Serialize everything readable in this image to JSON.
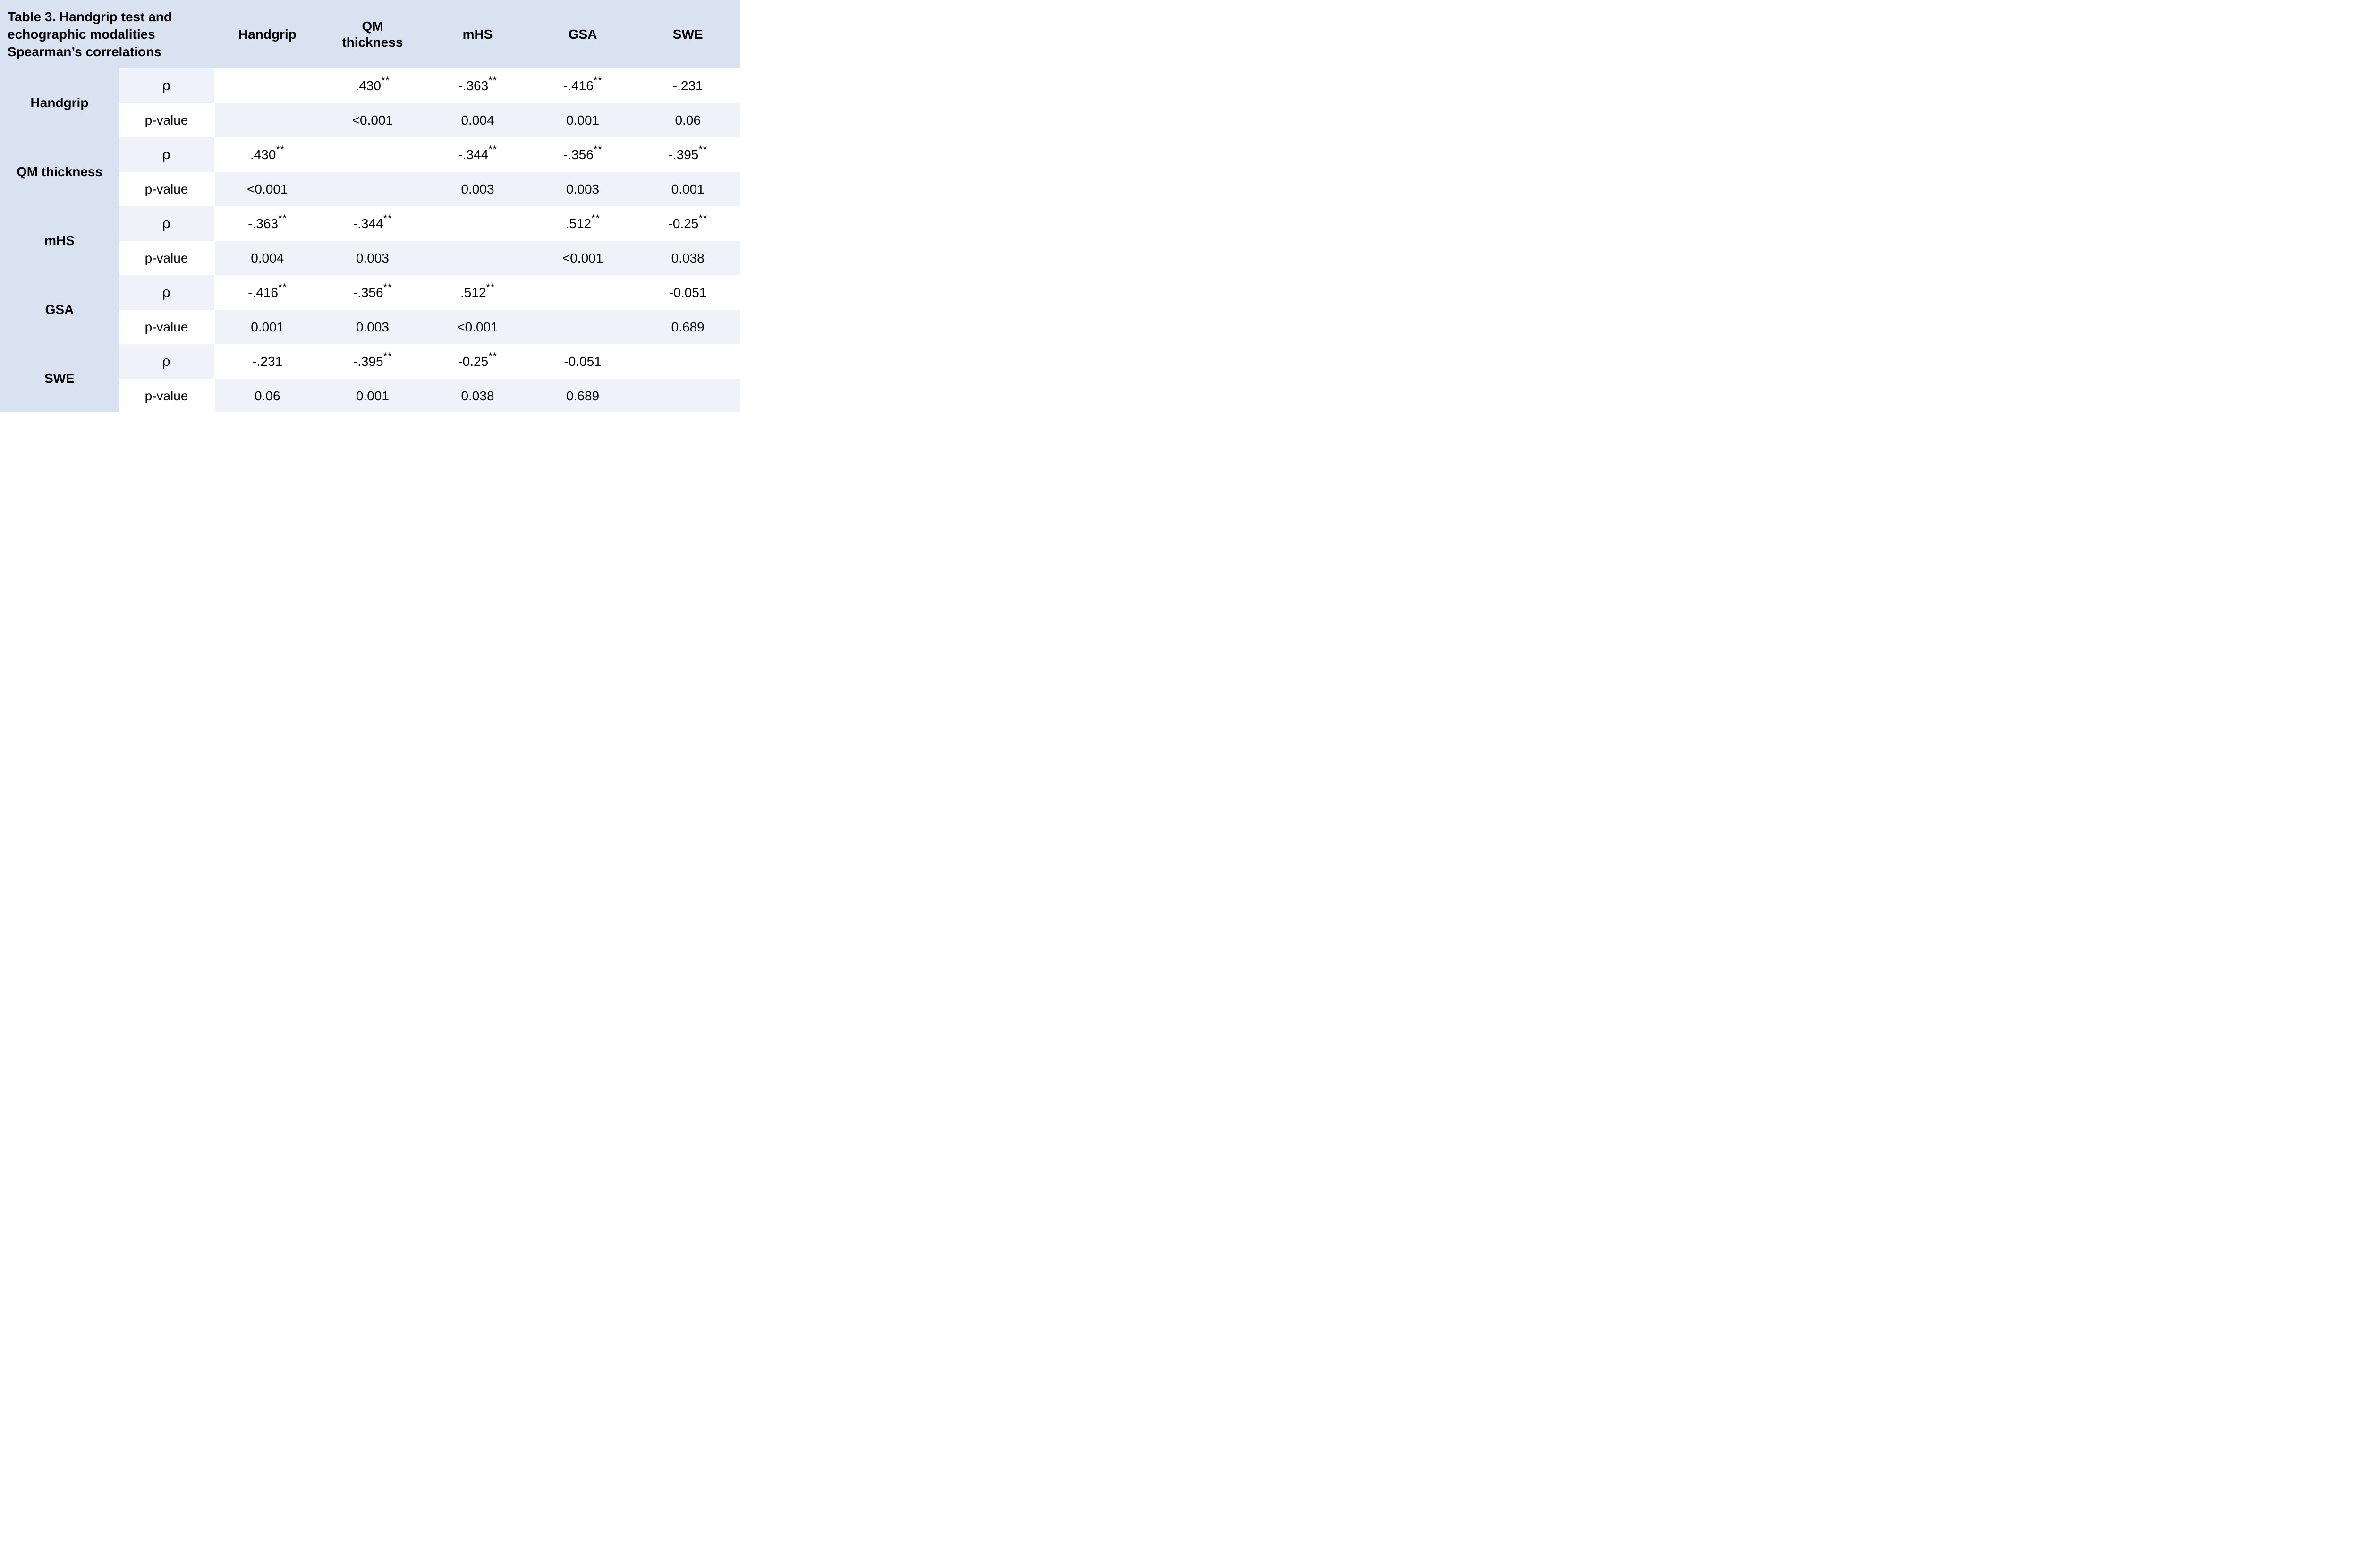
{
  "table": {
    "title": "Table 3. Handgrip test and echographic modalities Spearman’s correlations",
    "columns": [
      "Handgrip",
      "QM thickness",
      "mHS",
      "GSA",
      "SWE"
    ],
    "row_labels": {
      "rho": "ρ",
      "p": "p-value"
    },
    "groups": [
      {
        "label": "Handgrip",
        "rho": [
          "",
          ".430**",
          "-.363**",
          "-.416**",
          "-.231"
        ],
        "p": [
          "",
          "<0.001",
          "0.004",
          "0.001",
          "0.06"
        ]
      },
      {
        "label": "QM thickness",
        "rho": [
          ".430**",
          "",
          "-.344**",
          "-.356**",
          "-.395**"
        ],
        "p": [
          "<0.001",
          "",
          "0.003",
          "0.003",
          "0.001"
        ]
      },
      {
        "label": "mHS",
        "rho": [
          "-.363**",
          "-.344**",
          "",
          ".512**",
          "-0.25**"
        ],
        "p": [
          "0.004",
          "0.003",
          "",
          "<0.001",
          "0.038"
        ]
      },
      {
        "label": "GSA",
        "rho": [
          "-.416**",
          "-.356**",
          ".512**",
          "",
          "-0.051"
        ],
        "p": [
          "0.001",
          "0.003",
          "<0.001",
          "",
          "0.689"
        ]
      },
      {
        "label": "SWE",
        "rho": [
          "-.231",
          "-.395**",
          "-0.25**",
          "-0.051",
          ""
        ],
        "p": [
          "0.06",
          "0.001",
          "0.038",
          "0.689",
          ""
        ]
      }
    ],
    "colors": {
      "header_bg": "#d8e2f0",
      "stripe_bg": "#eff3f9",
      "cell_bg": "#ffffff",
      "text": "#000000"
    }
  }
}
